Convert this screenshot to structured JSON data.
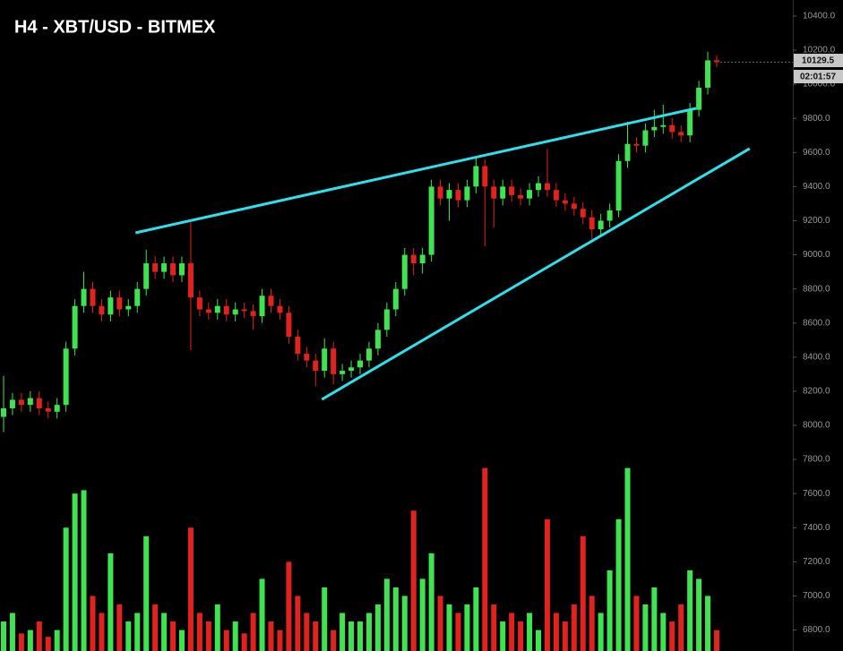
{
  "chart_data": {
    "type": "candlestick",
    "title": "H4 - XBT/USD - BITMEX",
    "countdown": "02:01:57",
    "ylim": [
      6677,
      10494
    ],
    "yticks": [
      {
        "value": 6800,
        "label": "6800.0"
      },
      {
        "value": 7000,
        "label": "7000.0"
      },
      {
        "value": 7200,
        "label": "7200.0"
      },
      {
        "value": 7400,
        "label": "7400.0"
      },
      {
        "value": 7600,
        "label": "7600.0"
      },
      {
        "value": 7800,
        "label": "7800.0"
      },
      {
        "value": 8000,
        "label": "8000.0"
      },
      {
        "value": 8200,
        "label": "8200.0"
      },
      {
        "value": 8400,
        "label": "8400.0"
      },
      {
        "value": 8600,
        "label": "8600.0"
      },
      {
        "value": 8800,
        "label": "8800.0"
      },
      {
        "value": 9000,
        "label": "9000.0"
      },
      {
        "value": 9200,
        "label": "9200.0"
      },
      {
        "value": 9400,
        "label": "9400.0"
      },
      {
        "value": 9600,
        "label": "9600.0"
      },
      {
        "value": 9800,
        "label": "9800.0"
      },
      {
        "value": 10000,
        "label": "10000.0"
      },
      {
        "value": 10200,
        "label": "10200.0"
      },
      {
        "value": 10400,
        "label": "10400.0"
      }
    ],
    "up_color": "#3fe34f",
    "down_color": "#e0231f",
    "trendline_color": "#2ee0ea",
    "open": [
      8050,
      8100,
      8150,
      8120,
      8160,
      8100,
      8080,
      8120,
      8450,
      8700,
      8800,
      8700,
      8650,
      8750,
      8680,
      8700,
      8800,
      8950,
      8900,
      8950,
      8880,
      8950,
      8750,
      8680,
      8660,
      8700,
      8650,
      8680,
      8670,
      8640,
      8760,
      8700,
      8660,
      8520,
      8420,
      8380,
      8320,
      8450,
      8300,
      8320,
      8340,
      8380,
      8450,
      8560,
      8680,
      8800,
      9000,
      8950,
      9000,
      9400,
      9330,
      9380,
      9320,
      9400,
      9520,
      9400,
      9330,
      9400,
      9350,
      9330,
      9380,
      9420,
      9380,
      9320,
      9300,
      9270,
      9220,
      9150,
      9200,
      9260,
      9550,
      9650,
      9640,
      9730,
      9750,
      9760,
      9720,
      9700,
      9850,
      9980,
      10140
    ],
    "high": [
      8290,
      8190,
      8190,
      8200,
      8200,
      8140,
      8160,
      8490,
      8740,
      8900,
      8840,
      8740,
      8790,
      8790,
      8740,
      8840,
      9030,
      8990,
      8990,
      8990,
      8990,
      9190,
      8790,
      8720,
      8740,
      8740,
      8720,
      8720,
      8710,
      8800,
      8800,
      8740,
      8700,
      8560,
      8460,
      8420,
      8510,
      8490,
      8360,
      8380,
      8420,
      8490,
      8600,
      8720,
      8840,
      9040,
      9040,
      9040,
      9440,
      9440,
      9420,
      9420,
      9440,
      9570,
      9560,
      9440,
      9440,
      9440,
      9390,
      9420,
      9460,
      9620,
      9420,
      9360,
      9340,
      9310,
      9260,
      9240,
      9300,
      9590,
      9780,
      9690,
      9770,
      9850,
      9880,
      9800,
      9760,
      9890,
      10020,
      10190,
      10170
    ],
    "low": [
      7960,
      8060,
      8080,
      8080,
      8060,
      8040,
      8040,
      8080,
      8410,
      8660,
      8660,
      8610,
      8610,
      8640,
      8640,
      8660,
      8760,
      8860,
      8860,
      8840,
      8840,
      8440,
      8640,
      8620,
      8620,
      8610,
      8610,
      8630,
      8560,
      8600,
      8660,
      8620,
      8480,
      8380,
      8340,
      8230,
      8280,
      8240,
      8260,
      8280,
      8300,
      8340,
      8410,
      8520,
      8640,
      8760,
      8880,
      8890,
      8960,
      9290,
      9200,
      9280,
      9280,
      9360,
      9050,
      9160,
      9290,
      9310,
      9290,
      9290,
      9340,
      9340,
      9280,
      9260,
      9230,
      9180,
      9090,
      9110,
      9160,
      9220,
      9510,
      9600,
      9600,
      9690,
      9710,
      9680,
      9660,
      9660,
      9810,
      9940,
      10100
    ],
    "close": [
      8100,
      8150,
      8120,
      8160,
      8100,
      8080,
      8120,
      8450,
      8700,
      8800,
      8700,
      8650,
      8750,
      8680,
      8700,
      8800,
      8950,
      8900,
      8950,
      8880,
      8950,
      8750,
      8680,
      8660,
      8700,
      8650,
      8680,
      8670,
      8640,
      8760,
      8700,
      8660,
      8520,
      8420,
      8380,
      8320,
      8450,
      8300,
      8320,
      8340,
      8380,
      8450,
      8560,
      8680,
      8800,
      9000,
      8950,
      9000,
      9400,
      9330,
      9380,
      9320,
      9400,
      9520,
      9400,
      9330,
      9400,
      9350,
      9330,
      9380,
      9420,
      9380,
      9320,
      9300,
      9270,
      9220,
      9150,
      9200,
      9260,
      9550,
      9650,
      9640,
      9730,
      9750,
      9760,
      9720,
      9700,
      9850,
      9980,
      10140,
      10129.5
    ],
    "volume": [
      6850,
      6900,
      6780,
      6800,
      6850,
      6760,
      6800,
      7400,
      7600,
      7620,
      7000,
      6900,
      7250,
      6950,
      6850,
      6900,
      7350,
      6950,
      6900,
      6850,
      6800,
      7400,
      6900,
      6850,
      6950,
      6800,
      6850,
      6780,
      6900,
      7100,
      6850,
      6800,
      7200,
      7000,
      6900,
      6850,
      7050,
      6800,
      6900,
      6850,
      6850,
      6900,
      6950,
      7100,
      7050,
      7000,
      7500,
      7100,
      7250,
      7000,
      6950,
      6900,
      6950,
      7050,
      7750,
      6950,
      6850,
      6900,
      6850,
      6900,
      6800,
      7450,
      6900,
      6850,
      6950,
      7350,
      7000,
      6900,
      7150,
      7450,
      7750,
      7000,
      6950,
      7050,
      6900,
      6850,
      6950,
      7150,
      7100,
      7000,
      6800
    ],
    "trendlines": [
      {
        "x": [
          14.8,
          77.7
        ],
        "y": [
          9129,
          9859
        ]
      },
      {
        "x": [
          35.7,
          83.7
        ],
        "y": [
          8152,
          9623
        ]
      }
    ]
  }
}
